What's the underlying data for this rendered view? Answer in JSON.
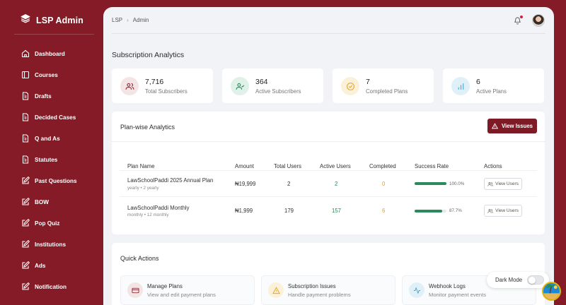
{
  "app": {
    "brand": "LSP Admin"
  },
  "sidebar": {
    "items": [
      {
        "label": "Dashboard",
        "icon": "home-icon"
      },
      {
        "label": "Courses",
        "icon": "book-icon"
      },
      {
        "label": "Drafts",
        "icon": "document-icon"
      },
      {
        "label": "Decided Cases",
        "icon": "document-icon"
      },
      {
        "label": "Q and As",
        "icon": "document-icon"
      },
      {
        "label": "Statutes",
        "icon": "document-icon"
      },
      {
        "label": "Past Questions",
        "icon": "edit-icon"
      },
      {
        "label": "BOW",
        "icon": "edit-icon"
      },
      {
        "label": "Pop Quiz",
        "icon": "edit-icon"
      },
      {
        "label": "Institutions",
        "icon": "edit-icon"
      },
      {
        "label": "Ads",
        "icon": "edit-icon"
      },
      {
        "label": "Notification",
        "icon": "edit-icon"
      }
    ]
  },
  "header": {
    "breadcrumb": [
      "LSP",
      "Admin"
    ]
  },
  "page": {
    "title": "Subscription Analytics"
  },
  "stats": [
    {
      "value": "7,716",
      "label": "Total Subscribers",
      "icon": "users-icon",
      "color": "#f3e4e6"
    },
    {
      "value": "364",
      "label": "Active Subscribers",
      "icon": "user-check-icon",
      "color": "#dff1e8"
    },
    {
      "value": "7",
      "label": "Completed Plans",
      "icon": "check-circle-icon",
      "color": "#fbf1d8"
    },
    {
      "value": "6",
      "label": "Active Plans",
      "icon": "bar-chart-icon",
      "color": "#dff0f8"
    }
  ],
  "plans": {
    "title": "Plan-wise Analytics",
    "view_issues": "View Issues",
    "columns": [
      "Plan Name",
      "Amount",
      "Total Users",
      "Active Users",
      "Completed",
      "Success Rate",
      "Actions"
    ],
    "rows": [
      {
        "name": "LawSchoolPaddi 2025 Annual Plan",
        "sub": "yearly • 2 yearly",
        "amount": "₦19,999",
        "total": "2",
        "active": "2",
        "completed": "0",
        "success_text": "100.0%",
        "success_rate": 1.0,
        "action": "View Users"
      },
      {
        "name": "LawSchoolPaddi Monthly",
        "sub": "monthly • 12 monthly",
        "amount": "₦1,999",
        "total": "179",
        "active": "157",
        "completed": "6",
        "success_text": "87.7%",
        "success_rate": 0.877,
        "action": "View Users"
      }
    ]
  },
  "quick_actions": {
    "title": "Quick Actions",
    "items": [
      {
        "title": "Manage Plans",
        "desc": "View and edit payment plans",
        "icon": "card-icon",
        "color": "#f3e4e6"
      },
      {
        "title": "Subscription Issues",
        "desc": "Handle payment problems",
        "icon": "warning-icon",
        "color": "#fbf1d8"
      },
      {
        "title": "Webhook Logs",
        "desc": "Monitor payment events",
        "icon": "activity-icon",
        "color": "#dff0f8"
      }
    ]
  },
  "dark_mode": {
    "label": "Dark Mode",
    "enabled": false
  },
  "colors": {
    "brand": "#841b27",
    "accent_button": "#7d1a25",
    "success": "#2b8a5a",
    "warning": "#e89a2a"
  }
}
